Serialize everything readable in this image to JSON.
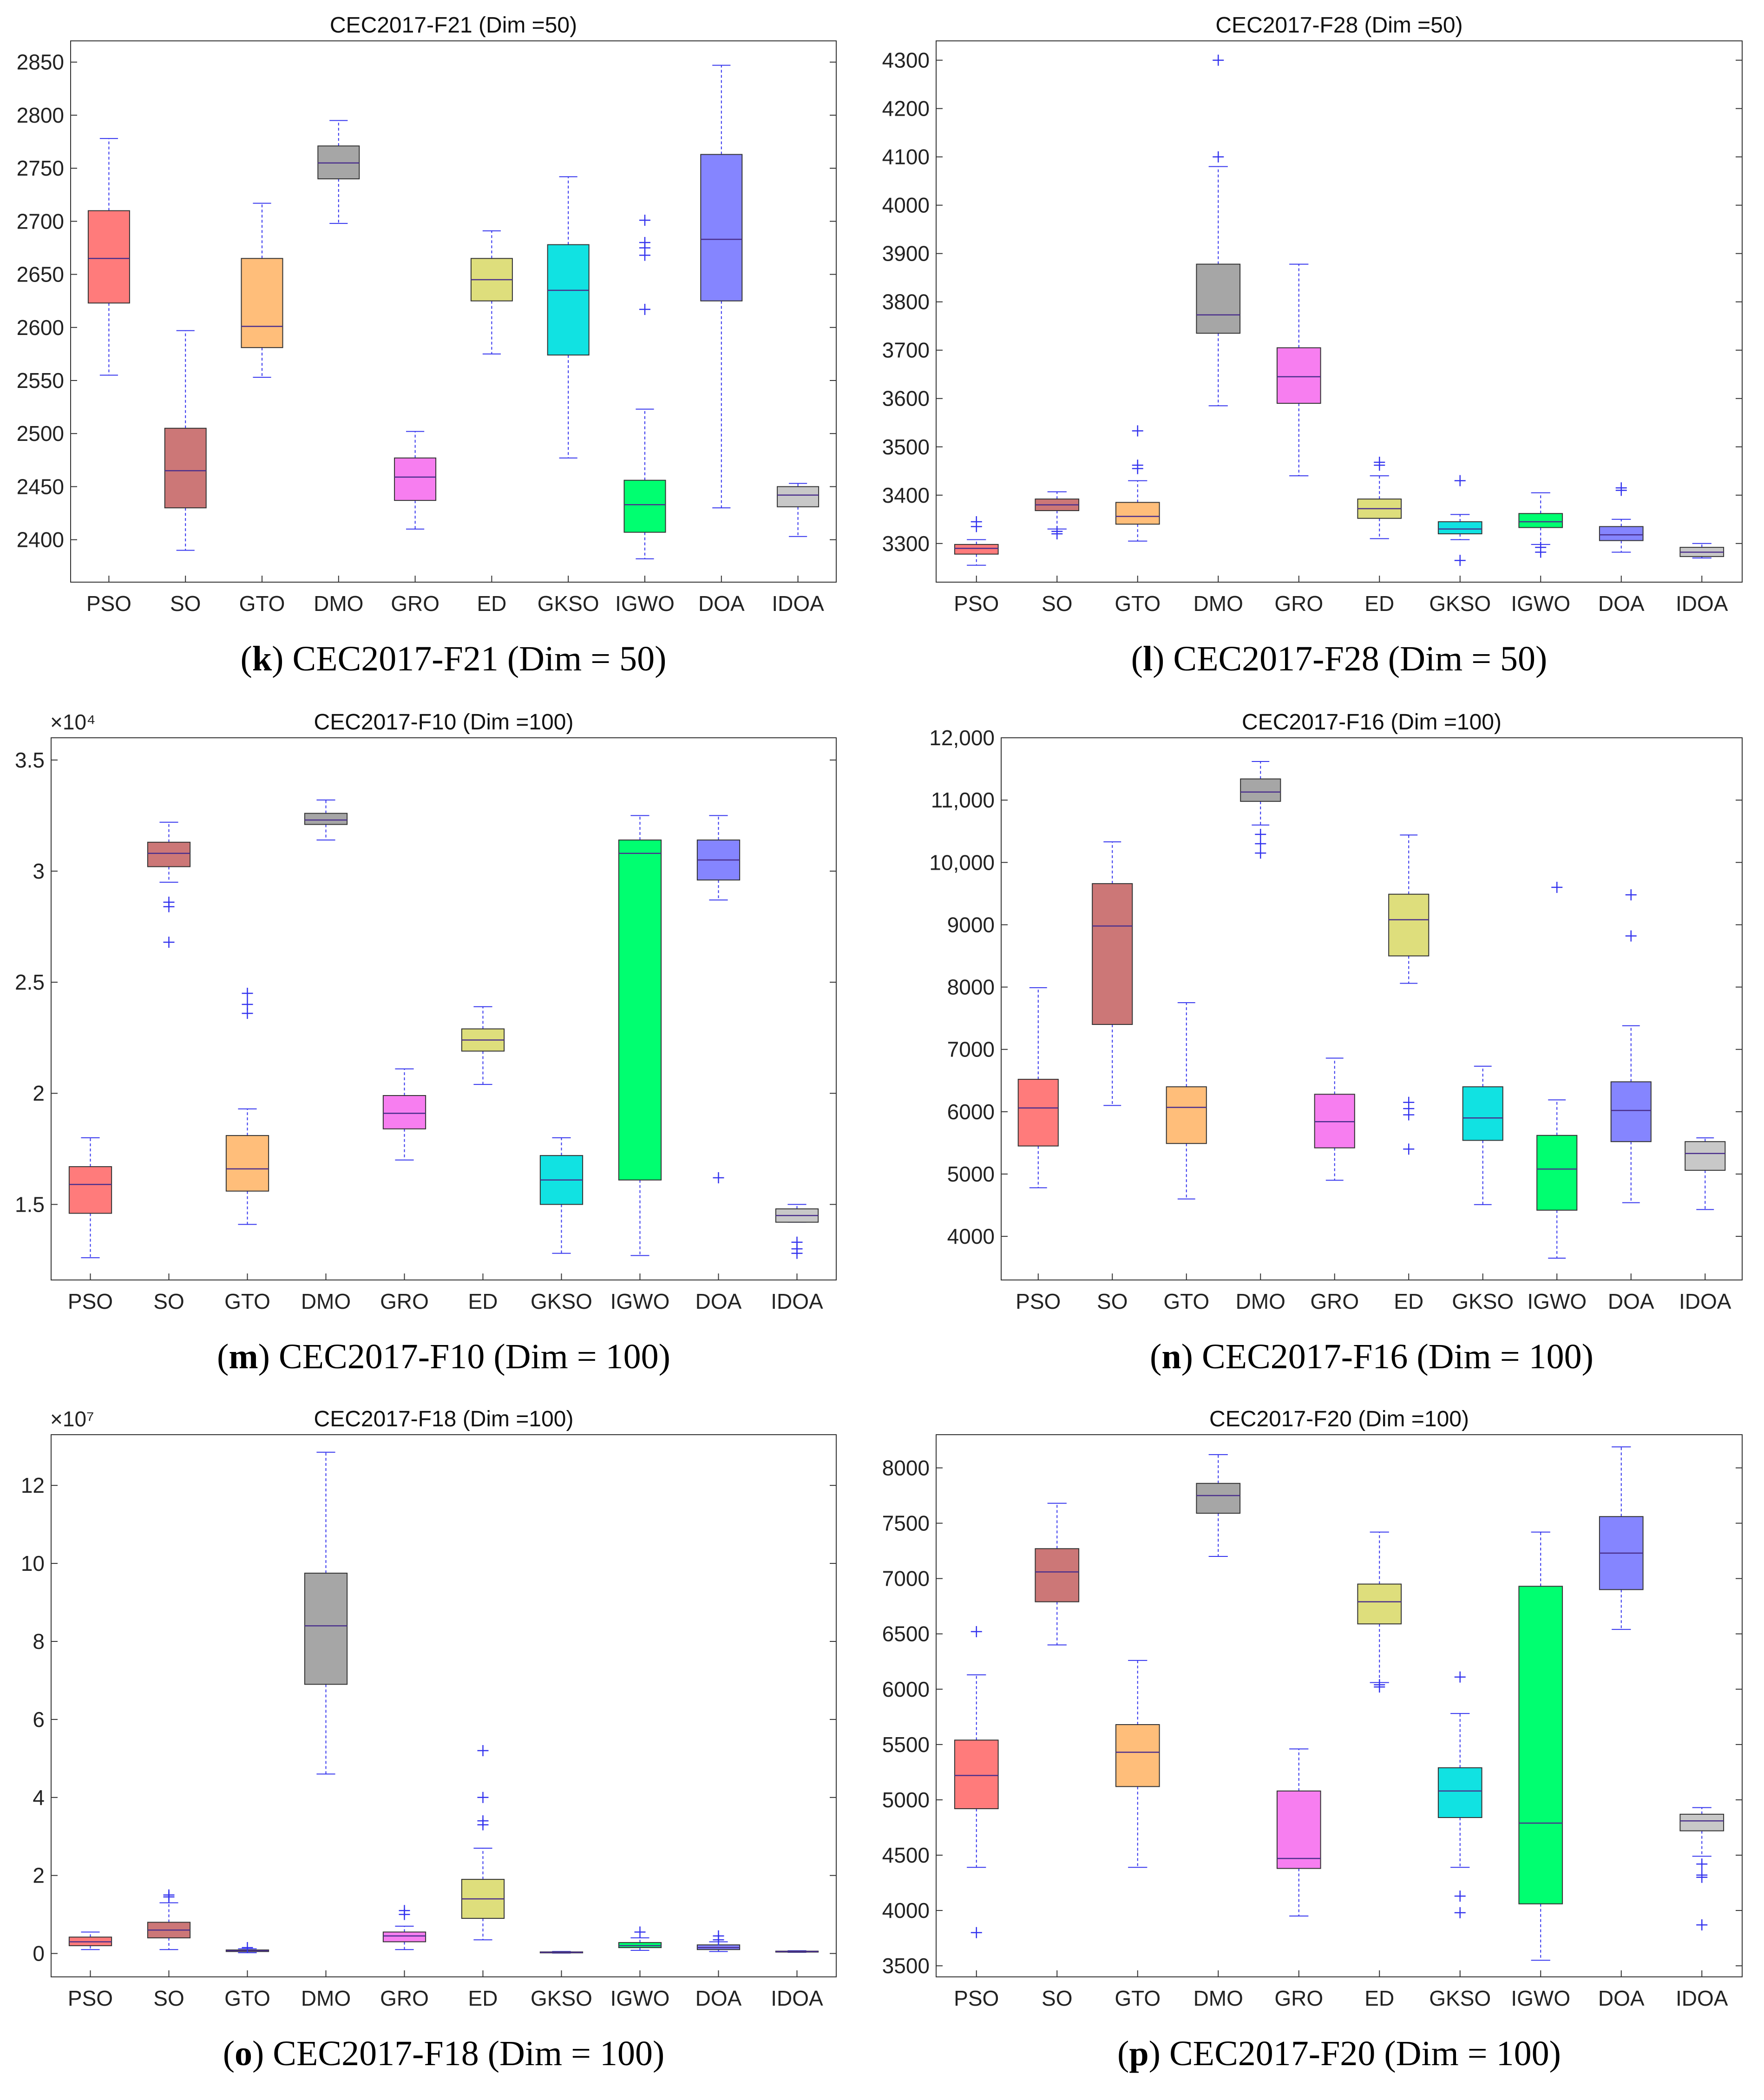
{
  "colors": {
    "PSO": "#ff7b7b",
    "SO": "#cc7777",
    "GTO": "#ffbe7a",
    "DMO": "#a6a6a6",
    "GRO": "#f77ef0",
    "ED": "#dede7c",
    "GKSO": "#11e2e2",
    "IGWO": "#00ff70",
    "DOA": "#8585ff",
    "IDOA": "#c8c8c8",
    "whisker": "#3333ee",
    "axis": "#333333"
  },
  "chart_data": [
    {
      "type": "boxplot",
      "title": "CEC2017-F21 (Dim =50)",
      "caption": {
        "letter": "k",
        "text": " CEC2017-F21 (Dim = 50)"
      },
      "exponent": "",
      "categories": [
        "PSO",
        "SO",
        "GTO",
        "DMO",
        "GRO",
        "ED",
        "GKSO",
        "IGWO",
        "DOA",
        "IDOA"
      ],
      "ylim": [
        2360,
        2870
      ],
      "yticks": [
        {
          "v": 2400,
          "label": "2400"
        },
        {
          "v": 2450,
          "label": "2450"
        },
        {
          "v": 2500,
          "label": "2500"
        },
        {
          "v": 2550,
          "label": "2550"
        },
        {
          "v": 2600,
          "label": "2600"
        },
        {
          "v": 2650,
          "label": "2650"
        },
        {
          "v": 2700,
          "label": "2700"
        },
        {
          "v": 2750,
          "label": "2750"
        },
        {
          "v": 2800,
          "label": "2800"
        },
        {
          "v": 2850,
          "label": "2850"
        }
      ],
      "boxes": [
        {
          "min": 2555,
          "q1": 2623,
          "median": 2665,
          "q3": 2710,
          "max": 2778,
          "outliers": []
        },
        {
          "min": 2390,
          "q1": 2430,
          "median": 2465,
          "q3": 2505,
          "max": 2597,
          "outliers": []
        },
        {
          "min": 2553,
          "q1": 2581,
          "median": 2601,
          "q3": 2665,
          "max": 2717,
          "outliers": []
        },
        {
          "min": 2698,
          "q1": 2740,
          "median": 2755,
          "q3": 2771,
          "max": 2795,
          "outliers": []
        },
        {
          "min": 2410,
          "q1": 2437,
          "median": 2459,
          "q3": 2477,
          "max": 2502,
          "outliers": []
        },
        {
          "min": 2575,
          "q1": 2625,
          "median": 2645,
          "q3": 2665,
          "max": 2691,
          "outliers": []
        },
        {
          "min": 2477,
          "q1": 2574,
          "median": 2635,
          "q3": 2678,
          "max": 2742,
          "outliers": []
        },
        {
          "min": 2382,
          "q1": 2407,
          "median": 2433,
          "q3": 2456,
          "max": 2523,
          "outliers": [
            2617,
            2668,
            2675,
            2680,
            2701
          ]
        },
        {
          "min": 2430,
          "q1": 2625,
          "median": 2683,
          "q3": 2763,
          "max": 2847,
          "outliers": []
        },
        {
          "min": 2403,
          "q1": 2431,
          "median": 2442,
          "q3": 2450,
          "max": 2453,
          "outliers": []
        }
      ]
    },
    {
      "type": "boxplot",
      "title": "CEC2017-F28 (Dim =50)",
      "caption": {
        "letter": "l",
        "text": " CEC2017-F28 (Dim = 50)"
      },
      "exponent": "",
      "categories": [
        "PSO",
        "SO",
        "GTO",
        "DMO",
        "GRO",
        "ED",
        "GKSO",
        "IGWO",
        "DOA",
        "IDOA"
      ],
      "ylim": [
        3220,
        4340
      ],
      "yticks": [
        {
          "v": 3300,
          "label": "3300"
        },
        {
          "v": 3400,
          "label": "3400"
        },
        {
          "v": 3500,
          "label": "3500"
        },
        {
          "v": 3600,
          "label": "3600"
        },
        {
          "v": 3700,
          "label": "3700"
        },
        {
          "v": 3800,
          "label": "3800"
        },
        {
          "v": 3900,
          "label": "3900"
        },
        {
          "v": 4000,
          "label": "4000"
        },
        {
          "v": 4100,
          "label": "4100"
        },
        {
          "v": 4200,
          "label": "4200"
        },
        {
          "v": 4300,
          "label": "4300"
        }
      ],
      "boxes": [
        {
          "min": 3255,
          "q1": 3278,
          "median": 3290,
          "q3": 3298,
          "max": 3308,
          "outliers": [
            3335,
            3345
          ]
        },
        {
          "min": 3330,
          "q1": 3368,
          "median": 3380,
          "q3": 3392,
          "max": 3407,
          "outliers": [
            3320,
            3325
          ]
        },
        {
          "min": 3305,
          "q1": 3340,
          "median": 3356,
          "q3": 3385,
          "max": 3430,
          "outliers": [
            3455,
            3462,
            3533
          ]
        },
        {
          "min": 3585,
          "q1": 3735,
          "median": 3773,
          "q3": 3878,
          "max": 4080,
          "outliers": [
            4100,
            4300
          ]
        },
        {
          "min": 3440,
          "q1": 3590,
          "median": 3645,
          "q3": 3705,
          "max": 3878,
          "outliers": []
        },
        {
          "min": 3310,
          "q1": 3352,
          "median": 3372,
          "q3": 3392,
          "max": 3440,
          "outliers": [
            3462,
            3468
          ]
        },
        {
          "min": 3308,
          "q1": 3320,
          "median": 3330,
          "q3": 3345,
          "max": 3360,
          "outliers": [
            3265,
            3430
          ]
        },
        {
          "min": 3298,
          "q1": 3333,
          "median": 3345,
          "q3": 3362,
          "max": 3405,
          "outliers": [
            3282,
            3292
          ]
        },
        {
          "min": 3282,
          "q1": 3306,
          "median": 3318,
          "q3": 3335,
          "max": 3350,
          "outliers": [
            3410,
            3415
          ]
        },
        {
          "min": 3270,
          "q1": 3273,
          "median": 3282,
          "q3": 3292,
          "max": 3300,
          "outliers": []
        }
      ]
    },
    {
      "type": "boxplot",
      "title": "CEC2017-F10 (Dim =100)",
      "caption": {
        "letter": "m",
        "text": " CEC2017-F10 (Dim = 100)"
      },
      "exponent": "×10⁴",
      "categories": [
        "PSO",
        "SO",
        "GTO",
        "DMO",
        "GRO",
        "ED",
        "GKSO",
        "IGWO",
        "DOA",
        "IDOA"
      ],
      "ylim": [
        1.16,
        3.6
      ],
      "yticks": [
        {
          "v": 1.5,
          "label": "1.5"
        },
        {
          "v": 2,
          "label": "2"
        },
        {
          "v": 2.5,
          "label": "2.5"
        },
        {
          "v": 3,
          "label": "3"
        },
        {
          "v": 3.5,
          "label": "3.5"
        }
      ],
      "boxes": [
        {
          "min": 1.26,
          "q1": 1.46,
          "median": 1.59,
          "q3": 1.67,
          "max": 1.8,
          "outliers": []
        },
        {
          "min": 2.95,
          "q1": 3.02,
          "median": 3.08,
          "q3": 3.13,
          "max": 3.22,
          "outliers": [
            2.68,
            2.84,
            2.86
          ]
        },
        {
          "min": 1.41,
          "q1": 1.56,
          "median": 1.66,
          "q3": 1.81,
          "max": 1.93,
          "outliers": [
            2.36,
            2.4,
            2.45
          ]
        },
        {
          "min": 3.14,
          "q1": 3.21,
          "median": 3.23,
          "q3": 3.26,
          "max": 3.32,
          "outliers": []
        },
        {
          "min": 1.7,
          "q1": 1.84,
          "median": 1.91,
          "q3": 1.99,
          "max": 2.11,
          "outliers": []
        },
        {
          "min": 2.04,
          "q1": 2.19,
          "median": 2.24,
          "q3": 2.29,
          "max": 2.39,
          "outliers": []
        },
        {
          "min": 1.28,
          "q1": 1.5,
          "median": 1.61,
          "q3": 1.72,
          "max": 1.8,
          "outliers": []
        },
        {
          "min": 1.27,
          "q1": 1.61,
          "median": 3.08,
          "q3": 3.14,
          "max": 3.25,
          "outliers": []
        },
        {
          "min": 2.87,
          "q1": 2.96,
          "median": 3.05,
          "q3": 3.14,
          "max": 3.25,
          "outliers": [
            1.62
          ]
        },
        {
          "min": 1.42,
          "q1": 1.42,
          "median": 1.45,
          "q3": 1.48,
          "max": 1.5,
          "outliers": [
            1.28,
            1.3,
            1.33
          ]
        }
      ]
    },
    {
      "type": "boxplot",
      "title": "CEC2017-F16 (Dim =100)",
      "caption": {
        "letter": "n",
        "text": " CEC2017-F16 (Dim = 100)"
      },
      "exponent": "",
      "categories": [
        "PSO",
        "SO",
        "GTO",
        "DMO",
        "GRO",
        "ED",
        "GKSO",
        "IGWO",
        "DOA",
        "IDOA"
      ],
      "ylim": [
        3300,
        12000
      ],
      "yticks": [
        {
          "v": 4000,
          "label": "4000"
        },
        {
          "v": 5000,
          "label": "5000"
        },
        {
          "v": 6000,
          "label": "6000"
        },
        {
          "v": 7000,
          "label": "7000"
        },
        {
          "v": 8000,
          "label": "8000"
        },
        {
          "v": 9000,
          "label": "9000"
        },
        {
          "v": 10000,
          "label": "10,000"
        },
        {
          "v": 11000,
          "label": "11,000"
        },
        {
          "v": 12000,
          "label": "12,000"
        }
      ],
      "boxes": [
        {
          "min": 4780,
          "q1": 5450,
          "median": 6060,
          "q3": 6520,
          "max": 7990,
          "outliers": []
        },
        {
          "min": 6100,
          "q1": 7400,
          "median": 8980,
          "q3": 9660,
          "max": 10330,
          "outliers": []
        },
        {
          "min": 4600,
          "q1": 5490,
          "median": 6070,
          "q3": 6400,
          "max": 7750,
          "outliers": []
        },
        {
          "min": 10600,
          "q1": 10980,
          "median": 11130,
          "q3": 11340,
          "max": 11620,
          "outliers": [
            10150,
            10300,
            10450
          ]
        },
        {
          "min": 4900,
          "q1": 5420,
          "median": 5840,
          "q3": 6280,
          "max": 6860,
          "outliers": []
        },
        {
          "min": 8060,
          "q1": 8500,
          "median": 9080,
          "q3": 9490,
          "max": 10440,
          "outliers": [
            5400,
            5950,
            6050,
            6150
          ]
        },
        {
          "min": 4510,
          "q1": 5540,
          "median": 5900,
          "q3": 6400,
          "max": 6730,
          "outliers": []
        },
        {
          "min": 3650,
          "q1": 4420,
          "median": 5080,
          "q3": 5620,
          "max": 6190,
          "outliers": [
            9600
          ]
        },
        {
          "min": 4540,
          "q1": 5520,
          "median": 6020,
          "q3": 6480,
          "max": 7380,
          "outliers": [
            8820,
            9480
          ]
        },
        {
          "min": 4430,
          "q1": 5060,
          "median": 5330,
          "q3": 5520,
          "max": 5580,
          "outliers": []
        }
      ]
    },
    {
      "type": "boxplot",
      "title": "CEC2017-F18 (Dim =100)",
      "caption": {
        "letter": "o",
        "text": " CEC2017-F18 (Dim = 100)"
      },
      "exponent": "×10⁷",
      "categories": [
        "PSO",
        "SO",
        "GTO",
        "DMO",
        "GRO",
        "ED",
        "GKSO",
        "IGWO",
        "DOA",
        "IDOA"
      ],
      "ylim": [
        -0.6,
        13.3
      ],
      "yticks": [
        {
          "v": 0,
          "label": "0"
        },
        {
          "v": 2,
          "label": "2"
        },
        {
          "v": 4,
          "label": "4"
        },
        {
          "v": 6,
          "label": "6"
        },
        {
          "v": 8,
          "label": "8"
        },
        {
          "v": 10,
          "label": "10"
        },
        {
          "v": 12,
          "label": "12"
        }
      ],
      "boxes": [
        {
          "min": 0.1,
          "q1": 0.2,
          "median": 0.3,
          "q3": 0.42,
          "max": 0.55,
          "outliers": []
        },
        {
          "min": 0.1,
          "q1": 0.4,
          "median": 0.6,
          "q3": 0.8,
          "max": 1.3,
          "outliers": [
            1.45,
            1.5
          ]
        },
        {
          "min": 0.02,
          "q1": 0.05,
          "median": 0.07,
          "q3": 0.09,
          "max": 0.12,
          "outliers": [
            0.15
          ]
        },
        {
          "min": 4.6,
          "q1": 6.9,
          "median": 8.4,
          "q3": 9.75,
          "max": 12.85,
          "outliers": []
        },
        {
          "min": 0.1,
          "q1": 0.3,
          "median": 0.45,
          "q3": 0.55,
          "max": 0.7,
          "outliers": [
            1.0,
            1.1
          ]
        },
        {
          "min": 0.35,
          "q1": 0.9,
          "median": 1.4,
          "q3": 1.9,
          "max": 2.7,
          "outliers": [
            3.3,
            3.4,
            4.0,
            5.2
          ]
        },
        {
          "min": 0.01,
          "q1": 0.02,
          "median": 0.03,
          "q3": 0.04,
          "max": 0.05,
          "outliers": []
        },
        {
          "min": 0.08,
          "q1": 0.15,
          "median": 0.2,
          "q3": 0.28,
          "max": 0.4,
          "outliers": [
            0.55
          ]
        },
        {
          "min": 0.05,
          "q1": 0.1,
          "median": 0.15,
          "q3": 0.22,
          "max": 0.3,
          "outliers": [
            0.35,
            0.45
          ]
        },
        {
          "min": 0.03,
          "q1": 0.04,
          "median": 0.05,
          "q3": 0.06,
          "max": 0.07,
          "outliers": []
        }
      ]
    },
    {
      "type": "boxplot",
      "title": "CEC2017-F20 (Dim =100)",
      "caption": {
        "letter": "p",
        "text": " CEC2017-F20 (Dim = 100)"
      },
      "exponent": "",
      "categories": [
        "PSO",
        "SO",
        "GTO",
        "DMO",
        "GRO",
        "ED",
        "GKSO",
        "IGWO",
        "DOA",
        "IDOA"
      ],
      "ylim": [
        3400,
        8300
      ],
      "yticks": [
        {
          "v": 3500,
          "label": "3500"
        },
        {
          "v": 4000,
          "label": "4000"
        },
        {
          "v": 4500,
          "label": "4500"
        },
        {
          "v": 5000,
          "label": "5000"
        },
        {
          "v": 5500,
          "label": "5500"
        },
        {
          "v": 6000,
          "label": "6000"
        },
        {
          "v": 6500,
          "label": "6500"
        },
        {
          "v": 7000,
          "label": "7000"
        },
        {
          "v": 7500,
          "label": "7500"
        },
        {
          "v": 8000,
          "label": "8000"
        }
      ],
      "boxes": [
        {
          "min": 4390,
          "q1": 4920,
          "median": 5220,
          "q3": 5540,
          "max": 6130,
          "outliers": [
            3800,
            6520
          ]
        },
        {
          "min": 6400,
          "q1": 6790,
          "median": 7060,
          "q3": 7270,
          "max": 7680,
          "outliers": []
        },
        {
          "min": 4390,
          "q1": 5120,
          "median": 5430,
          "q3": 5680,
          "max": 6260,
          "outliers": []
        },
        {
          "min": 7200,
          "q1": 7590,
          "median": 7750,
          "q3": 7860,
          "max": 8120,
          "outliers": []
        },
        {
          "min": 3950,
          "q1": 4380,
          "median": 4470,
          "q3": 5080,
          "max": 5460,
          "outliers": []
        },
        {
          "min": 6060,
          "q1": 6590,
          "median": 6790,
          "q3": 6950,
          "max": 7420,
          "outliers": [
            6020,
            6040
          ]
        },
        {
          "min": 4390,
          "q1": 4840,
          "median": 5080,
          "q3": 5290,
          "max": 5780,
          "outliers": [
            3980,
            4130,
            6110
          ]
        },
        {
          "min": 3550,
          "q1": 4060,
          "median": 4790,
          "q3": 6930,
          "max": 7420,
          "outliers": []
        },
        {
          "min": 6540,
          "q1": 6900,
          "median": 7230,
          "q3": 7560,
          "max": 8190,
          "outliers": []
        },
        {
          "min": 4490,
          "q1": 4720,
          "median": 4810,
          "q3": 4870,
          "max": 4930,
          "outliers": [
            3870,
            4300,
            4320,
            4420
          ]
        }
      ]
    }
  ]
}
